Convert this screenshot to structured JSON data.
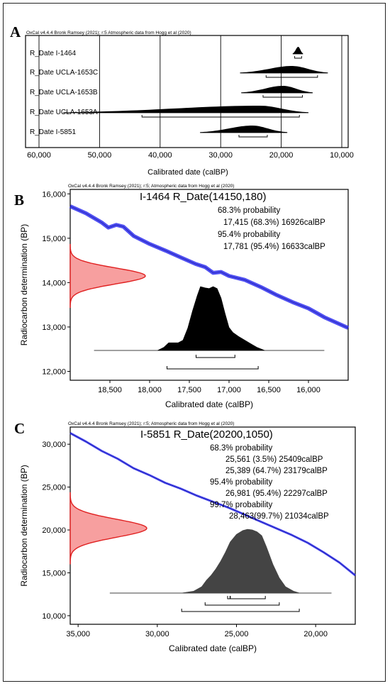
{
  "panels": [
    "A",
    "B",
    "C"
  ],
  "chart_data": [
    {
      "type": "multiplot-distributions",
      "header": "OxCal v4.4.4 Bronk Ramsey (2021); r:5 Atmospheric data from Hogg et al (2020)",
      "xlabel": "Calibrated date (calBP)",
      "xlim": [
        60000,
        10000
      ],
      "x_ticks": [
        60000,
        50000,
        40000,
        30000,
        20000,
        10000
      ],
      "x_tick_labels": [
        "60,000",
        "50,000",
        "40,000",
        "30,000",
        "20,000",
        "10,000"
      ],
      "rows": [
        {
          "label": "R_Date I-1464",
          "peak": 17200,
          "from": 18100,
          "to": 16400,
          "ranges": [
            [
              17781,
              16633
            ]
          ]
        },
        {
          "label": "R_Date UCLA-1653C",
          "peak": 18200,
          "from": 26800,
          "to": 12300,
          "ranges": [
            [
              22500,
              14000
            ]
          ]
        },
        {
          "label": "R_Date UCLA-1653B",
          "peak": 19700,
          "from": 26600,
          "to": 14800,
          "ranges": [
            [
              23000,
              16500
            ]
          ]
        },
        {
          "label": "R_Date UCLA-1653A",
          "peak": 23500,
          "from": 56000,
          "to": 15500,
          "ranges": [
            [
              43000,
              17000
            ]
          ]
        },
        {
          "label": "R_Date I-5851",
          "peak": 24800,
          "from": 33400,
          "to": 19000,
          "ranges": [
            [
              26981,
              22297
            ]
          ]
        }
      ]
    },
    {
      "type": "calibration-curve",
      "header": "OxCal v4.4.4 Bronk Ramsey (2021); r:5; Atmospheric data from Hogg et al (2020)",
      "title": "I-1464 R_Date(14150,180)",
      "xlabel": "Calibrated date (calBP)",
      "ylabel": "Radiocarbon determination (BP)",
      "xlim": [
        19000,
        15500
      ],
      "ylim": [
        11800,
        16100
      ],
      "x_ticks": [
        18500,
        18000,
        17500,
        17000,
        16500,
        16000
      ],
      "x_tick_labels": [
        "18,500",
        "18,000",
        "17,500",
        "17,000",
        "16,500",
        "16,000"
      ],
      "y_ticks": [
        12000,
        13000,
        14000,
        15000,
        16000
      ],
      "y_tick_labels": [
        "12,000",
        "13,000",
        "14,000",
        "15,000",
        "16,000"
      ],
      "text_lines": [
        "68.3% probability",
        "17,415 (68.3%) 16926calBP",
        "95.4% probability",
        "17,781 (95.4%) 16633calBP"
      ],
      "calibration_curve": [
        [
          19000,
          15720
        ],
        [
          18800,
          15560
        ],
        [
          18600,
          15350
        ],
        [
          18520,
          15240
        ],
        [
          18420,
          15300
        ],
        [
          18330,
          15260
        ],
        [
          18200,
          15050
        ],
        [
          18000,
          14870
        ],
        [
          17800,
          14720
        ],
        [
          17600,
          14560
        ],
        [
          17420,
          14420
        ],
        [
          17300,
          14350
        ],
        [
          17200,
          14220
        ],
        [
          17100,
          14240
        ],
        [
          17000,
          14150
        ],
        [
          16800,
          14060
        ],
        [
          16600,
          13900
        ],
        [
          16400,
          13720
        ],
        [
          16200,
          13560
        ],
        [
          16000,
          13420
        ],
        [
          15800,
          13220
        ],
        [
          15500,
          12980
        ]
      ],
      "measurement": {
        "mean": 14150,
        "sd": 180
      },
      "posterior": [
        [
          17900,
          0.0
        ],
        [
          17820,
          0.05
        ],
        [
          17760,
          0.12
        ],
        [
          17700,
          0.12
        ],
        [
          17640,
          0.12
        ],
        [
          17580,
          0.16
        ],
        [
          17520,
          0.35
        ],
        [
          17460,
          0.62
        ],
        [
          17400,
          0.86
        ],
        [
          17360,
          1.0
        ],
        [
          17300,
          0.98
        ],
        [
          17250,
          0.97
        ],
        [
          17200,
          1.0
        ],
        [
          17150,
          0.97
        ],
        [
          17100,
          0.82
        ],
        [
          17050,
          0.58
        ],
        [
          17000,
          0.36
        ],
        [
          16950,
          0.28
        ],
        [
          16880,
          0.22
        ],
        [
          16800,
          0.16
        ],
        [
          16720,
          0.1
        ],
        [
          16650,
          0.05
        ],
        [
          16550,
          0.0
        ]
      ],
      "ranges": [
        [
          17415,
          16926
        ],
        [
          17781,
          16633
        ]
      ],
      "x_baseline": [
        18700,
        15800
      ]
    },
    {
      "type": "calibration-curve",
      "header": "OxCal v4.4.4 Bronk Ramsey (2021); r:5; Atmospheric data from Hogg et al (2020)",
      "title": "I-5851 R_Date(20200,1050)",
      "xlabel": "Calibrated date (calBP)",
      "ylabel": "Radiocarbon determination (BP)",
      "xlim": [
        35500,
        17500
      ],
      "ylim": [
        9000,
        32000
      ],
      "x_ticks": [
        35000,
        30000,
        25000,
        20000
      ],
      "x_tick_labels": [
        "35,000",
        "30,000",
        "25,000",
        "20,000"
      ],
      "y_ticks": [
        10000,
        15000,
        20000,
        25000,
        30000
      ],
      "y_tick_labels": [
        "10,000",
        "15,000",
        "20,000",
        "25,000",
        "30,000"
      ],
      "text_lines": [
        "68.3% probability",
        "25,561 (3.5%) 25409calBP",
        "25,389 (64.7%) 23179calBP",
        "95.4% probability",
        "26,981 (95.4%) 22297calBP",
        "99.7% probability",
        "28,463(99.7%) 21034calBP"
      ],
      "calibration_curve": [
        [
          35500,
          31300
        ],
        [
          34500,
          30300
        ],
        [
          33500,
          29200
        ],
        [
          32500,
          28300
        ],
        [
          31500,
          27200
        ],
        [
          30500,
          26400
        ],
        [
          29500,
          25500
        ],
        [
          28500,
          24800
        ],
        [
          27500,
          24000
        ],
        [
          26500,
          23300
        ],
        [
          25500,
          22600
        ],
        [
          24500,
          21800
        ],
        [
          23500,
          21000
        ],
        [
          22500,
          20200
        ],
        [
          21500,
          19400
        ],
        [
          20500,
          18500
        ],
        [
          19500,
          17400
        ],
        [
          18500,
          16200
        ],
        [
          17500,
          14700
        ]
      ],
      "measurement": {
        "mean": 20200,
        "sd": 1050
      },
      "posterior": [
        [
          28500,
          0.0
        ],
        [
          27700,
          0.03
        ],
        [
          27200,
          0.1
        ],
        [
          26900,
          0.2
        ],
        [
          26600,
          0.28
        ],
        [
          26300,
          0.38
        ],
        [
          26000,
          0.5
        ],
        [
          25700,
          0.64
        ],
        [
          25400,
          0.8
        ],
        [
          25000,
          0.92
        ],
        [
          24600,
          0.98
        ],
        [
          24300,
          1.0
        ],
        [
          24000,
          0.99
        ],
        [
          23700,
          0.96
        ],
        [
          23400,
          0.9
        ],
        [
          23100,
          0.72
        ],
        [
          22700,
          0.45
        ],
        [
          22300,
          0.24
        ],
        [
          21900,
          0.1
        ],
        [
          21400,
          0.03
        ],
        [
          21000,
          0.0
        ]
      ],
      "ranges": [
        [
          25561,
          25409
        ],
        [
          25389,
          23179
        ],
        [
          26981,
          22297
        ],
        [
          28463,
          21034
        ]
      ],
      "x_baseline": [
        33000,
        19000
      ]
    }
  ]
}
